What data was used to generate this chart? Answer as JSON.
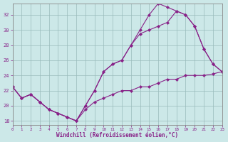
{
  "xlabel": "Windchill (Refroidissement éolien,°C)",
  "bg_color": "#cce8e8",
  "line_color": "#882288",
  "grid_color": "#99bbbb",
  "series": [
    {
      "x": [
        0,
        1,
        2,
        3,
        4,
        5,
        6,
        7,
        8,
        9,
        10,
        11,
        12,
        13,
        14,
        15,
        16,
        17,
        18,
        19,
        20,
        21,
        22,
        23
      ],
      "y": [
        22.5,
        21.0,
        21.5,
        20.5,
        19.5,
        19.0,
        18.5,
        18.0,
        19.5,
        20.5,
        21.0,
        21.5,
        22.0,
        22.0,
        22.5,
        22.5,
        23.0,
        23.5,
        23.5,
        24.0,
        24.0,
        24.0,
        24.2,
        24.5
      ]
    },
    {
      "x": [
        0,
        1,
        2,
        3,
        4,
        5,
        6,
        7,
        8,
        9,
        10,
        11,
        12,
        13,
        14,
        15,
        16,
        17,
        18,
        19,
        20,
        21,
        22,
        23
      ],
      "y": [
        22.5,
        21.0,
        21.5,
        20.5,
        19.5,
        19.0,
        18.5,
        18.0,
        20.0,
        22.0,
        24.5,
        25.5,
        26.0,
        28.0,
        29.5,
        30.0,
        30.5,
        31.0,
        32.5,
        32.0,
        30.5,
        27.5,
        25.5,
        24.5
      ]
    },
    {
      "x": [
        0,
        1,
        2,
        3,
        4,
        5,
        6,
        7,
        8,
        9,
        10,
        11,
        12,
        13,
        14,
        15,
        16,
        17,
        18,
        19,
        20,
        21,
        22,
        23
      ],
      "y": [
        22.5,
        21.0,
        21.5,
        20.5,
        19.5,
        19.0,
        18.5,
        18.0,
        20.0,
        22.0,
        24.5,
        25.5,
        26.0,
        28.0,
        30.0,
        32.0,
        33.5,
        33.0,
        32.5,
        32.0,
        30.5,
        27.5,
        25.5,
        24.5
      ]
    }
  ],
  "xlim": [
    0,
    23
  ],
  "ylim": [
    17.5,
    33.5
  ],
  "yticks": [
    18,
    20,
    22,
    24,
    26,
    28,
    30,
    32
  ],
  "xticks": [
    0,
    1,
    2,
    3,
    4,
    5,
    6,
    7,
    8,
    9,
    10,
    11,
    12,
    13,
    14,
    15,
    16,
    17,
    18,
    19,
    20,
    21,
    22,
    23
  ]
}
